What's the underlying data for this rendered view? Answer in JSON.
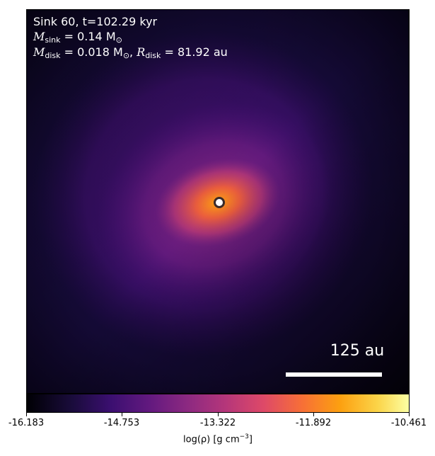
{
  "annotation": {
    "line1": "Sink 60, t=102.29 kyr",
    "msink_symbol": "M",
    "msink_sub": "sink",
    "msink_value": " = 0.14 M",
    "msink_unit_sub": "⊙",
    "mdisk_symbol": "M",
    "mdisk_sub": "disk",
    "mdisk_value": " = 0.018 M",
    "mdisk_unit_sub": "⊙",
    "rdisk_sep": ",  ",
    "rdisk_symbol": "R",
    "rdisk_sub": "disk",
    "rdisk_value": " = 81.92 au"
  },
  "scale_bar": {
    "label": "125 au"
  },
  "colorbar": {
    "ticks": [
      "-16.183",
      "-14.753",
      "-13.322",
      "-11.892",
      "-10.461"
    ],
    "label_prefix": "log(ρ) [g cm",
    "label_sup": "−3",
    "label_suffix": "]"
  },
  "colors": {
    "background_dark": "#0d0520",
    "mid_purple": "#3b0f70",
    "magenta": "#8c2981",
    "orange": "#f76f37",
    "yellow": "#fcffa4",
    "sink_fill": "#ffffff"
  }
}
